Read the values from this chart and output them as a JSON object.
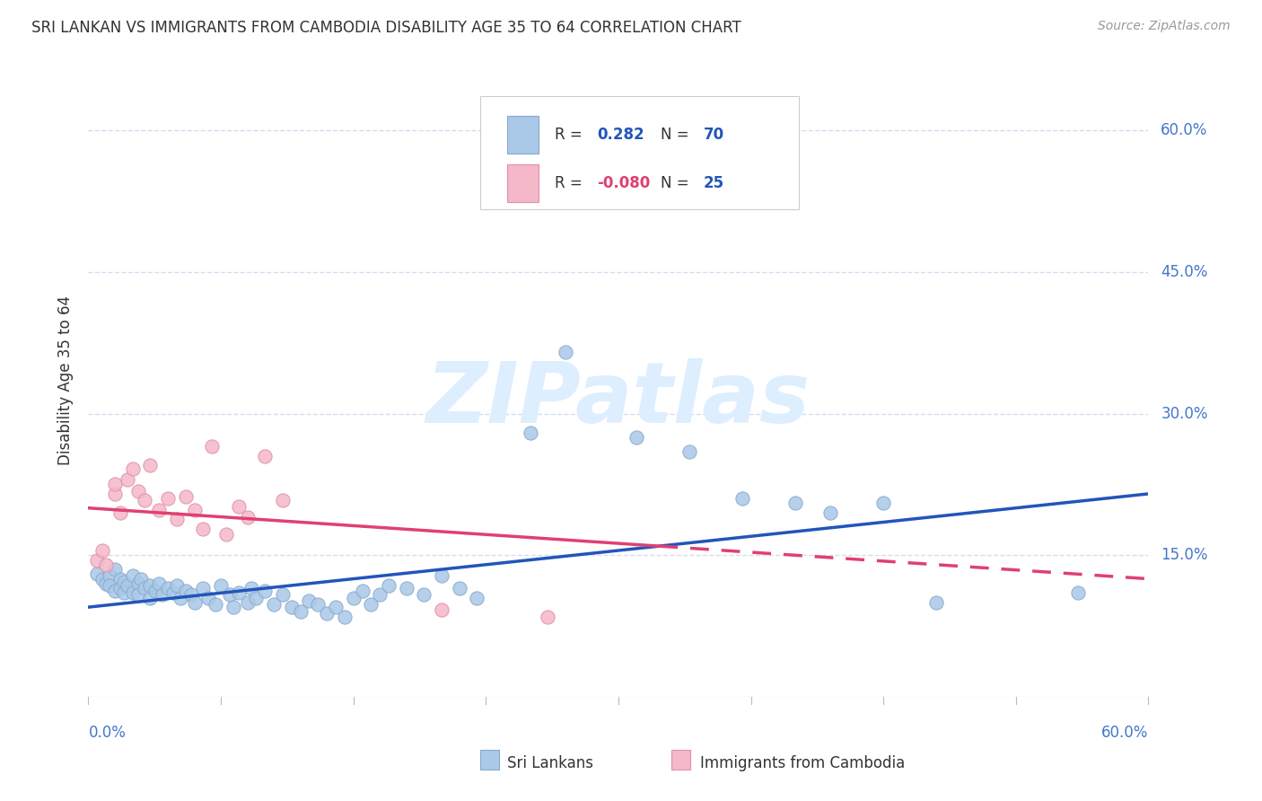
{
  "title": "SRI LANKAN VS IMMIGRANTS FROM CAMBODIA DISABILITY AGE 35 TO 64 CORRELATION CHART",
  "source": "Source: ZipAtlas.com",
  "ylabel": "Disability Age 35 to 64",
  "ytick_labels": [
    "15.0%",
    "30.0%",
    "45.0%",
    "60.0%"
  ],
  "ytick_values": [
    0.15,
    0.3,
    0.45,
    0.6
  ],
  "xlim": [
    0.0,
    0.6
  ],
  "ylim": [
    0.0,
    0.67
  ],
  "legend_r_blue": "0.282",
  "legend_n_blue": "70",
  "legend_r_pink": "-0.080",
  "legend_n_pink": "25",
  "blue_scatter_color": "#aac8e8",
  "blue_edge_color": "#88aacc",
  "pink_scatter_color": "#f5b8c8",
  "pink_edge_color": "#e090a8",
  "blue_line_color": "#2255bb",
  "pink_line_color": "#e04070",
  "watermark_text": "ZIPatlas",
  "watermark_color": "#ddeeff",
  "grid_color": "#d5ddf0",
  "background_color": "#ffffff",
  "title_color": "#333333",
  "axis_label_color": "#4477cc",
  "blue_scatter_x": [
    0.005,
    0.008,
    0.01,
    0.012,
    0.012,
    0.015,
    0.015,
    0.018,
    0.018,
    0.02,
    0.02,
    0.022,
    0.025,
    0.025,
    0.028,
    0.028,
    0.03,
    0.032,
    0.035,
    0.035,
    0.038,
    0.04,
    0.042,
    0.045,
    0.048,
    0.05,
    0.052,
    0.055,
    0.058,
    0.06,
    0.065,
    0.068,
    0.072,
    0.075,
    0.08,
    0.082,
    0.085,
    0.09,
    0.092,
    0.095,
    0.1,
    0.105,
    0.11,
    0.115,
    0.12,
    0.125,
    0.13,
    0.135,
    0.14,
    0.145,
    0.15,
    0.155,
    0.16,
    0.165,
    0.17,
    0.18,
    0.19,
    0.2,
    0.21,
    0.22,
    0.25,
    0.27,
    0.31,
    0.34,
    0.37,
    0.4,
    0.42,
    0.45,
    0.48,
    0.56
  ],
  "blue_scatter_y": [
    0.13,
    0.125,
    0.12,
    0.128,
    0.118,
    0.135,
    0.112,
    0.125,
    0.115,
    0.122,
    0.11,
    0.118,
    0.128,
    0.11,
    0.12,
    0.108,
    0.125,
    0.115,
    0.118,
    0.105,
    0.112,
    0.12,
    0.108,
    0.115,
    0.11,
    0.118,
    0.105,
    0.112,
    0.108,
    0.1,
    0.115,
    0.105,
    0.098,
    0.118,
    0.108,
    0.095,
    0.11,
    0.1,
    0.115,
    0.105,
    0.112,
    0.098,
    0.108,
    0.095,
    0.09,
    0.102,
    0.098,
    0.088,
    0.095,
    0.085,
    0.105,
    0.112,
    0.098,
    0.108,
    0.118,
    0.115,
    0.108,
    0.128,
    0.115,
    0.105,
    0.28,
    0.365,
    0.275,
    0.26,
    0.21,
    0.205,
    0.195,
    0.205,
    0.1,
    0.11
  ],
  "pink_scatter_x": [
    0.005,
    0.008,
    0.01,
    0.015,
    0.015,
    0.018,
    0.022,
    0.025,
    0.028,
    0.032,
    0.035,
    0.04,
    0.045,
    0.05,
    0.055,
    0.06,
    0.065,
    0.07,
    0.078,
    0.085,
    0.09,
    0.1,
    0.11,
    0.2,
    0.26
  ],
  "pink_scatter_y": [
    0.145,
    0.155,
    0.14,
    0.215,
    0.225,
    0.195,
    0.23,
    0.242,
    0.218,
    0.208,
    0.245,
    0.198,
    0.21,
    0.188,
    0.212,
    0.198,
    0.178,
    0.265,
    0.172,
    0.202,
    0.19,
    0.255,
    0.208,
    0.092,
    0.085
  ],
  "blue_trend_x_start": 0.0,
  "blue_trend_x_end": 0.6,
  "blue_trend_y_start": 0.095,
  "blue_trend_y_end": 0.215,
  "pink_trend_x_start": 0.0,
  "pink_trend_x_end": 0.6,
  "pink_trend_y_start": 0.2,
  "pink_trend_y_end": 0.125
}
